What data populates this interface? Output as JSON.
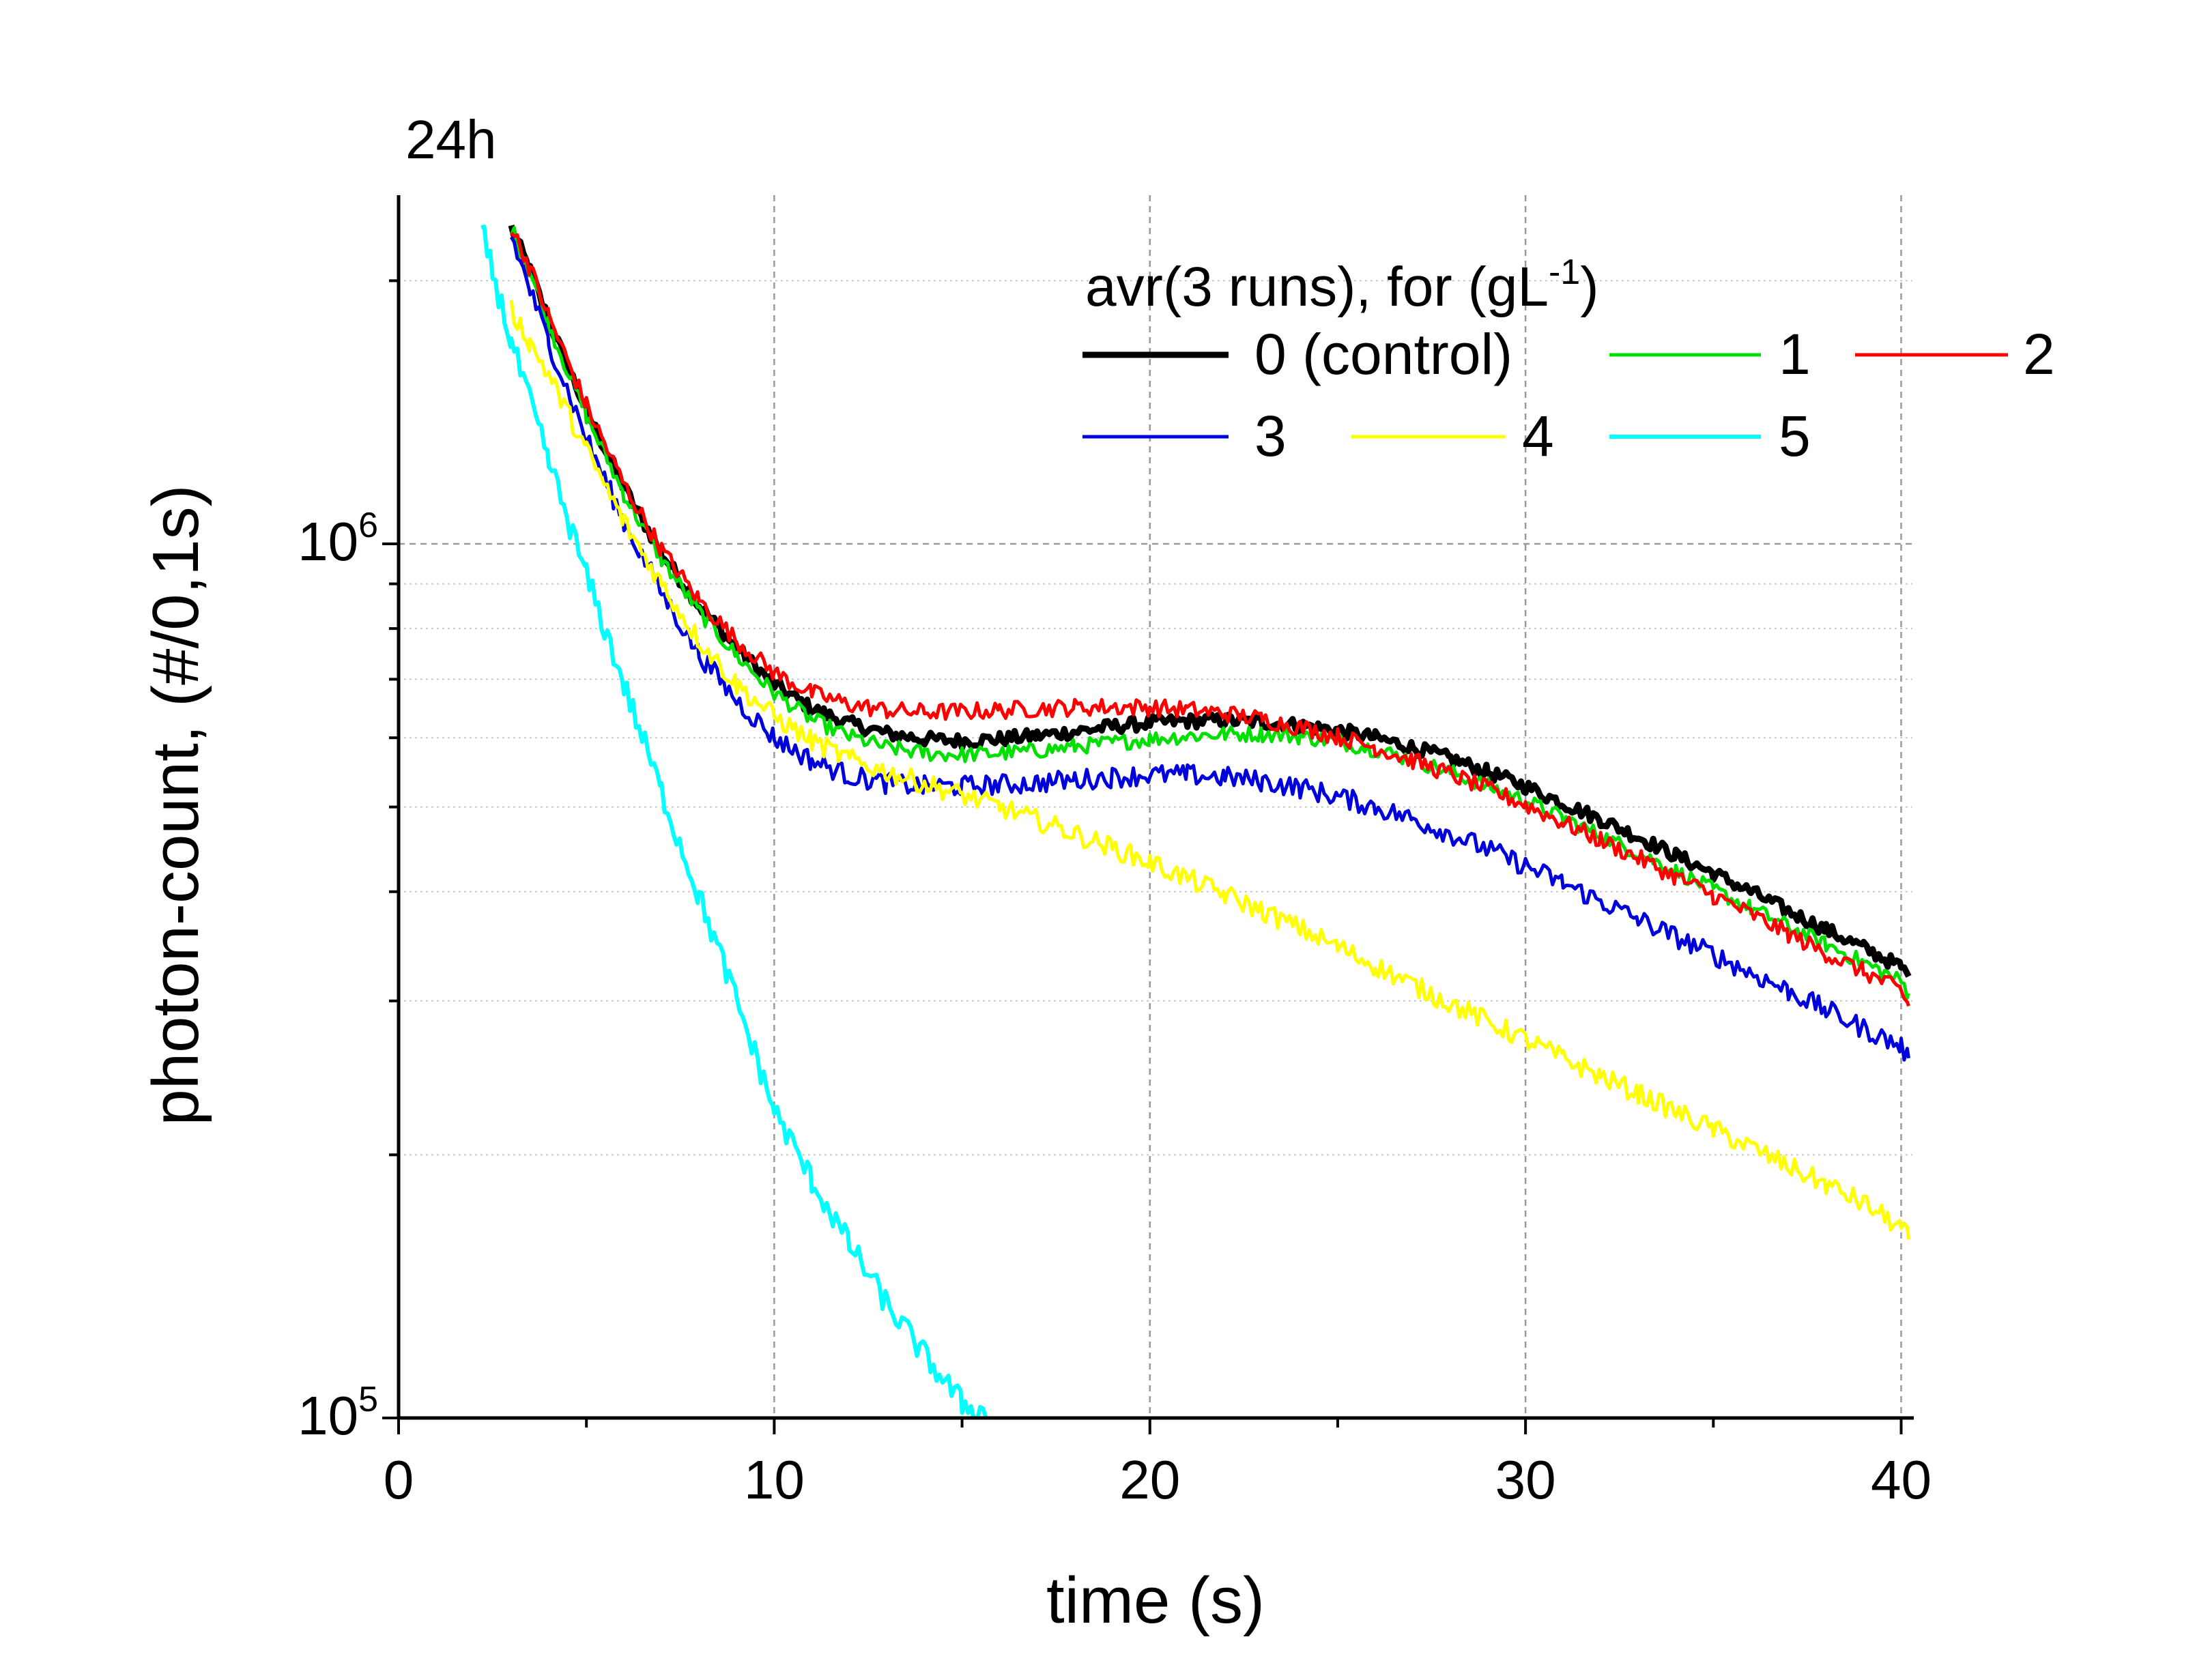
{
  "chart_data": {
    "type": "line",
    "panel_label": "24h",
    "xlabel": "time (s)",
    "ylabel": "photon-count, (#/0,1s)",
    "xlim": [
      0,
      40.3
    ],
    "ylim": [
      100000,
      2300000
    ],
    "yscale": "log",
    "x_ticks": [
      0,
      10,
      20,
      30,
      40
    ],
    "x_tick_labels": [
      "0",
      "10",
      "20",
      "30",
      "40"
    ],
    "y_ticks": [
      {
        "base": "10",
        "exp": "5",
        "value": 100000
      },
      {
        "base": "10",
        "exp": "6",
        "value": 1000000
      }
    ],
    "grid": "dashed major lines at x = 10, 20, 30, 40 and y = 10^6; dotted minor lines at y = 2·10^5 … 9·10^5 and 2·10^6",
    "legend": {
      "title": "avr(3 runs), for (gL",
      "title_sup": "-1",
      "title_end": ")",
      "placement": "top-right"
    },
    "series": [
      {
        "name": "0 (control)",
        "color": "#000000",
        "width": 9,
        "noise": 0.008,
        "x": [
          3.0,
          3.5,
          4,
          5,
          6,
          7,
          8,
          9,
          10,
          11,
          12,
          13,
          14,
          15,
          16,
          17,
          18,
          19,
          20,
          21,
          22,
          23,
          24,
          25,
          26,
          27,
          28,
          29,
          30,
          31,
          32,
          33,
          34,
          35,
          36,
          37,
          38,
          39,
          40,
          40.2
        ],
        "values": [
          2300000,
          2050000,
          1800000,
          1420000,
          1160000,
          975000,
          850000,
          760000,
          690000,
          648000,
          623000,
          607000,
          598000,
          595000,
          598000,
          603000,
          610000,
          618000,
          624000,
          627000,
          628000,
          625000,
          620000,
          612000,
          600000,
          585000,
          568000,
          548000,
          528000,
          505000,
          484000,
          462000,
          440000,
          420000,
          400000,
          380000,
          362000,
          345000,
          328000,
          320000
        ]
      },
      {
        "name": "1",
        "color": "#00e000",
        "width": 5,
        "noise": 0.009,
        "x": [
          3.0,
          3.5,
          4,
          5,
          6,
          7,
          8,
          9,
          10,
          11,
          12,
          13,
          14,
          15,
          16,
          17,
          18,
          19,
          20,
          21,
          22,
          23,
          24,
          25,
          26,
          27,
          28,
          29,
          30,
          31,
          32,
          33,
          34,
          35,
          36,
          37,
          38,
          39,
          40,
          40.2
        ],
        "values": [
          2300000,
          2050000,
          1780000,
          1400000,
          1140000,
          960000,
          836000,
          745000,
          675000,
          630000,
          602000,
          585000,
          576000,
          574000,
          576000,
          580000,
          586000,
          592000,
          598000,
          603000,
          606000,
          606000,
          602000,
          594000,
          582000,
          566000,
          548000,
          528000,
          508000,
          486000,
          464000,
          443000,
          422000,
          402000,
          383000,
          365000,
          348000,
          332000,
          316000,
          306000
        ]
      },
      {
        "name": "2",
        "color": "#ff0000",
        "width": 5,
        "noise": 0.01,
        "x": [
          3.0,
          3.5,
          4,
          5,
          6,
          7,
          8,
          9,
          10,
          11,
          12,
          13,
          14,
          15,
          16,
          17,
          18,
          19,
          20,
          21,
          22,
          23,
          24,
          25,
          26,
          27,
          28,
          29,
          30,
          31,
          32,
          33,
          34,
          35,
          36,
          37,
          38,
          39,
          40,
          40.2
        ],
        "values": [
          2300000,
          2070000,
          1820000,
          1440000,
          1170000,
          985000,
          862000,
          775000,
          712000,
          675000,
          655000,
          645000,
          642000,
          643000,
          645000,
          648000,
          650000,
          651000,
          650000,
          646000,
          640000,
          630000,
          617000,
          602000,
          585000,
          565000,
          545000,
          524000,
          503000,
          480000,
          458000,
          437000,
          416000,
          396000,
          377000,
          358000,
          340000,
          324000,
          308000,
          296000
        ]
      },
      {
        "name": "3",
        "color": "#0000dd",
        "width": 5,
        "noise": 0.012,
        "x": [
          3.0,
          3.5,
          4,
          5,
          6,
          7,
          8,
          9,
          10,
          11,
          12,
          13,
          14,
          15,
          16,
          17,
          18,
          19,
          20,
          21,
          22,
          23,
          24,
          25,
          26,
          27,
          28,
          29,
          30,
          31,
          32,
          33,
          34,
          35,
          36,
          37,
          38,
          39,
          40,
          40.2
        ],
        "values": [
          2250000,
          1950000,
          1700000,
          1320000,
          1060000,
          880000,
          748000,
          662000,
          600000,
          565000,
          543000,
          532000,
          528000,
          528000,
          530000,
          533000,
          537000,
          541000,
          544000,
          544000,
          541000,
          535000,
          526000,
          514000,
          500000,
          484000,
          466000,
          447000,
          428000,
          409000,
          390000,
          372000,
          355000,
          339000,
          323000,
          308000,
          293000,
          279000,
          266000,
          258000
        ]
      },
      {
        "name": "4",
        "color": "#ffff00",
        "width": 5,
        "noise": 0.012,
        "x": [
          3.0,
          3.5,
          4,
          5,
          6,
          7,
          8,
          9,
          10,
          11,
          12,
          13,
          14,
          15,
          16,
          17,
          18,
          19,
          20,
          21,
          22,
          23,
          24,
          25,
          26,
          27,
          28,
          29,
          30,
          31,
          32,
          33,
          34,
          35,
          36,
          37,
          38,
          39,
          40,
          40.2
        ],
        "values": [
          1850000,
          1700000,
          1560000,
          1280000,
          1060000,
          900000,
          775000,
          690000,
          635000,
          595000,
          567000,
          548000,
          532000,
          516000,
          500000,
          483000,
          466000,
          449000,
          432000,
          414000,
          397000,
          380000,
          363000,
          346000,
          329000,
          313000,
          298000,
          284000,
          271000,
          258000,
          246000,
          235000,
          224000,
          214000,
          204000,
          194000,
          185000,
          176000,
          165000,
          160000
        ]
      },
      {
        "name": "5",
        "color": "#00ffff",
        "width": 6,
        "noise": 0.015,
        "x": [
          2.2,
          2.5,
          3,
          4,
          5,
          6,
          7,
          8,
          9,
          10,
          11,
          12,
          13,
          14,
          15,
          15.8
        ],
        "values": [
          2300000,
          2050000,
          1700000,
          1240000,
          920000,
          690000,
          520000,
          395000,
          300000,
          225000,
          187000,
          158000,
          135000,
          118000,
          104000,
          100000
        ]
      }
    ]
  }
}
